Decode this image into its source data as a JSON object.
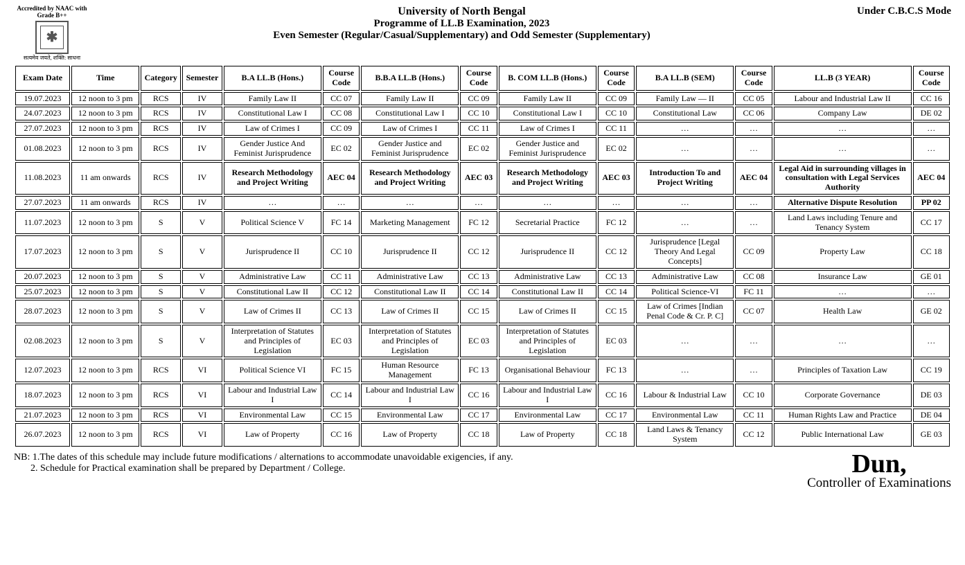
{
  "accreditation": {
    "top": "Accredited by NAAC with Grade B++",
    "bottom": "सत्यमेव जयते, शक्ति: साधना"
  },
  "header": {
    "university": "University of North Bengal",
    "programme": "Programme of LL.B Examination, 2023",
    "semesters": "Even Semester (Regular/Casual/Supplementary) and Odd Semester (Supplementary)",
    "mode": "Under C.B.C.S Mode"
  },
  "table": {
    "columns": [
      "Exam Date",
      "Time",
      "Category",
      "Semester",
      "B.A LL.B (Hons.)",
      "Course Code",
      "B.B.A LL.B (Hons.)",
      "Course Code",
      "B. COM LL.B (Hons.)",
      "Course Code",
      "B.A LL.B (SEM)",
      "Course Code",
      "LL.B (3 YEAR)",
      "Course Code"
    ],
    "col_classes": [
      "col-date",
      "col-time",
      "col-cat",
      "col-sem",
      "col-sub",
      "col-code",
      "col-sub",
      "col-code",
      "col-sub",
      "col-code",
      "col-sub",
      "col-code",
      "col-sub-wide",
      "col-code"
    ],
    "rows": [
      {
        "cells": [
          "19.07.2023",
          "12 noon to 3 pm",
          "RCS",
          "IV",
          "Family Law II",
          "CC 07",
          "Family Law II",
          "CC 09",
          "Family Law II",
          "CC 09",
          "Family Law — II",
          "CC 05",
          "Labour and Industrial Law II",
          "CC 16"
        ]
      },
      {
        "cells": [
          "24.07.2023",
          "12 noon to 3 pm",
          "RCS",
          "IV",
          "Constitutional Law I",
          "CC 08",
          "Constitutional Law I",
          "CC 10",
          "Constitutional Law I",
          "CC 10",
          "Constitutional Law",
          "CC 06",
          "Company Law",
          "DE 02"
        ]
      },
      {
        "cells": [
          "27.07.2023",
          "12 noon to 3 pm",
          "RCS",
          "IV",
          "Law of Crimes I",
          "CC 09",
          "Law of Crimes I",
          "CC 11",
          "Law of Crimes I",
          "CC 11",
          "…",
          "…",
          "…",
          "…"
        ]
      },
      {
        "cells": [
          "01.08.2023",
          "12 noon to 3 pm",
          "RCS",
          "IV",
          "Gender Justice And Feminist Jurisprudence",
          "EC 02",
          "Gender Justice and Feminist Jurisprudence",
          "EC 02",
          "Gender Justice and Feminist Jurisprudence",
          "EC 02",
          "…",
          "…",
          "…",
          "…"
        ]
      },
      {
        "cells": [
          "11.08.2023",
          "11 am onwards",
          "RCS",
          "IV",
          "Research Methodology and Project Writing",
          "AEC 04",
          "Research Methodology and Project Writing",
          "AEC 03",
          "Research Methodology and Project Writing",
          "AEC 03",
          "Introduction To and Project Writing",
          "AEC 04",
          "Legal Aid in surrounding villages in consultation with Legal Services Authority",
          "AEC 04"
        ],
        "bold": [
          4,
          5,
          6,
          7,
          8,
          9,
          10,
          11,
          12,
          13
        ]
      },
      {
        "cells": [
          "27.07.2023",
          "11 am onwards",
          "RCS",
          "IV",
          "…",
          "…",
          "…",
          "…",
          "…",
          "…",
          "…",
          "…",
          "Alternative Dispute Resolution",
          "PP 02"
        ],
        "bold": [
          12,
          13
        ]
      },
      {
        "cells": [
          "11.07.2023",
          "12 noon to 3 pm",
          "S",
          "V",
          "Political Science V",
          "FC 14",
          "Marketing Management",
          "FC 12",
          "Secretarial Practice",
          "FC 12",
          "…",
          "…",
          "Land Laws including Tenure and Tenancy System",
          "CC 17"
        ]
      },
      {
        "cells": [
          "17.07.2023",
          "12 noon to 3 pm",
          "S",
          "V",
          "Jurisprudence II",
          "CC 10",
          "Jurisprudence II",
          "CC 12",
          "Jurisprudence II",
          "CC 12",
          "Jurisprudence [Legal Theory And Legal Concepts]",
          "CC 09",
          "Property Law",
          "CC 18"
        ]
      },
      {
        "cells": [
          "20.07.2023",
          "12 noon to 3 pm",
          "S",
          "V",
          "Administrative Law",
          "CC 11",
          "Administrative Law",
          "CC 13",
          "Administrative Law",
          "CC 13",
          "Administrative Law",
          "CC 08",
          "Insurance Law",
          "GE 01"
        ]
      },
      {
        "cells": [
          "25.07.2023",
          "12 noon to 3 pm",
          "S",
          "V",
          "Constitutional Law II",
          "CC 12",
          "Constitutional Law II",
          "CC 14",
          "Constitutional Law II",
          "CC 14",
          "Political Science-VI",
          "FC 11",
          "…",
          "…"
        ]
      },
      {
        "cells": [
          "28.07.2023",
          "12 noon to 3 pm",
          "S",
          "V",
          "Law of Crimes II",
          "CC 13",
          "Law of Crimes II",
          "CC 15",
          "Law of Crimes II",
          "CC 15",
          "Law of Crimes [Indian Penal Code & Cr. P. C]",
          "CC 07",
          "Health Law",
          "GE 02"
        ]
      },
      {
        "cells": [
          "02.08.2023",
          "12 noon to 3 pm",
          "S",
          "V",
          "Interpretation of Statutes and Principles of Legislation",
          "EC 03",
          "Interpretation of Statutes and Principles of Legislation",
          "EC 03",
          "Interpretation of Statutes and Principles of Legislation",
          "EC 03",
          "…",
          "…",
          "…",
          "…"
        ]
      },
      {
        "cells": [
          "12.07.2023",
          "12 noon to 3 pm",
          "RCS",
          "VI",
          "Political Science VI",
          "FC 15",
          "Human Resource Management",
          "FC 13",
          "Organisational Behaviour",
          "FC 13",
          "…",
          "…",
          "Principles of Taxation Law",
          "CC 19"
        ]
      },
      {
        "cells": [
          "18.07.2023",
          "12 noon to 3 pm",
          "RCS",
          "VI",
          "Labour and Industrial Law I",
          "CC 14",
          "Labour and Industrial Law I",
          "CC 16",
          "Labour and Industrial Law I",
          "CC 16",
          "Labour & Industrial Law",
          "CC 10",
          "Corporate Governance",
          "DE 03"
        ]
      },
      {
        "cells": [
          "21.07.2023",
          "12 noon to 3 pm",
          "RCS",
          "VI",
          "Environmental Law",
          "CC 15",
          "Environmental Law",
          "CC 17",
          "Environmental Law",
          "CC 17",
          "Environmental Law",
          "CC 11",
          "Human Rights Law and Practice",
          "DE 04"
        ]
      },
      {
        "cells": [
          "26.07.2023",
          "12 noon to 3 pm",
          "RCS",
          "VI",
          "Law of Property",
          "CC 16",
          "Law of Property",
          "CC 18",
          "Law of Property",
          "CC 18",
          "Land Laws & Tenancy System",
          "CC 12",
          "Public International Law",
          "GE 03"
        ]
      }
    ]
  },
  "footer": {
    "nb1": "NB: 1.The dates of this schedule may include future modifications / alternations to accommodate unavoidable exigencies, if any.",
    "nb2": "2. Schedule for Practical examination shall be prepared by Department / College.",
    "sig_title": "Controller of Examinations"
  }
}
